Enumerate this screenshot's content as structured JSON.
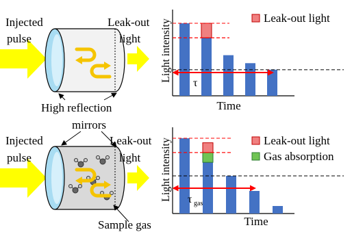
{
  "top": {
    "label_injected_line1": "Injected",
    "label_injected_line2": "pulse",
    "label_leakout_line1": "Leak-out",
    "label_leakout_line2": "light",
    "y_axis_label": "Light intensity",
    "x_axis_label": "Time",
    "legend_leakout": "Leak-out light",
    "tau_label": "τ"
  },
  "middle_label_line1": "High reflection",
  "middle_label_line2": "mirrors",
  "bottom": {
    "label_injected_line1": "Injected",
    "label_injected_line2": "pulse",
    "label_leakout_line1": "Leak-out",
    "label_leakout_line2": "light",
    "y_axis_label": "Light intensity",
    "x_axis_label": "Time",
    "legend_leakout": "Leak-out light",
    "legend_gas": "Gas absorption",
    "tau_label": "τ",
    "tau_subscript": "gas",
    "sample_gas_label": "Sample gas"
  },
  "colors": {
    "bar": "#4472c4",
    "leakout": "#f08080",
    "gas": "#70c454",
    "arrow_yellow": "#ffff00",
    "tau_arrow": "#ff0000"
  },
  "chart_data": [
    {
      "type": "bar",
      "title": "",
      "xlabel": "Time",
      "ylabel": "Light intensity",
      "values": [
        1.0,
        0.8,
        0.56,
        0.45,
        0.36
      ],
      "leakout_segment": 0.2,
      "threshold": 0.36,
      "tau_span_bars": 4
    },
    {
      "type": "bar",
      "title": "",
      "xlabel": "Time",
      "ylabel": "Light intensity",
      "values": [
        1.0,
        0.68,
        0.5,
        0.3,
        0.1
      ],
      "leakout_segment": 0.13,
      "gas_segment": 0.13,
      "threshold": 0.5,
      "tau_span_bars": 3
    }
  ]
}
